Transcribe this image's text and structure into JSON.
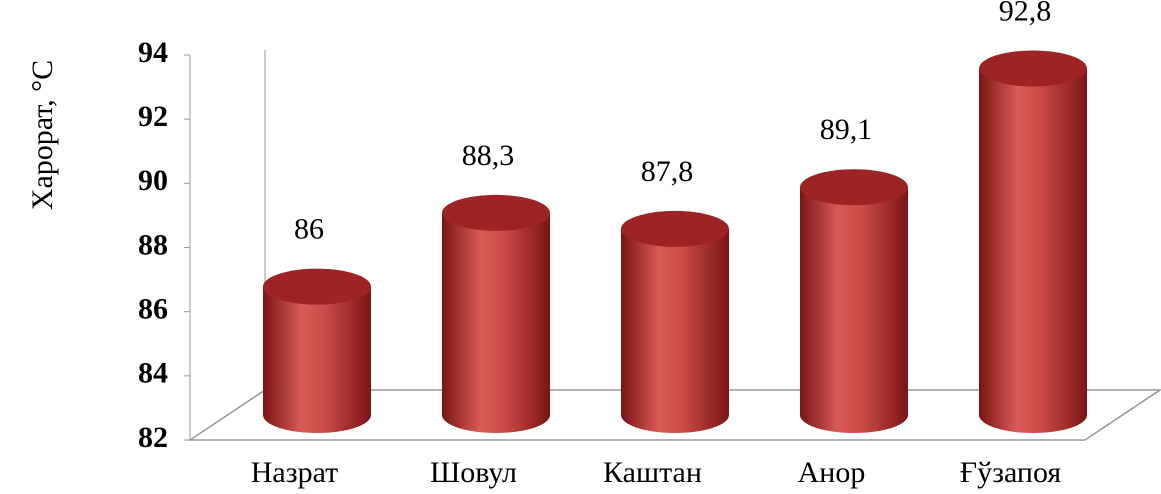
{
  "chart_data": {
    "type": "bar",
    "ylabel": "Харорат, °С",
    "categories": [
      "Назрат",
      "Шовул",
      "Каштан",
      "Анор",
      "Ғўзапоя"
    ],
    "values": [
      86,
      88.3,
      87.8,
      89.1,
      92.8
    ],
    "value_labels": [
      "86",
      "88,3",
      "87,8",
      "89,1",
      "92,8"
    ],
    "color": "#c0392b",
    "ylim": [
      82,
      94
    ],
    "yticks": [
      82,
      84,
      86,
      88,
      90,
      92,
      94
    ]
  }
}
